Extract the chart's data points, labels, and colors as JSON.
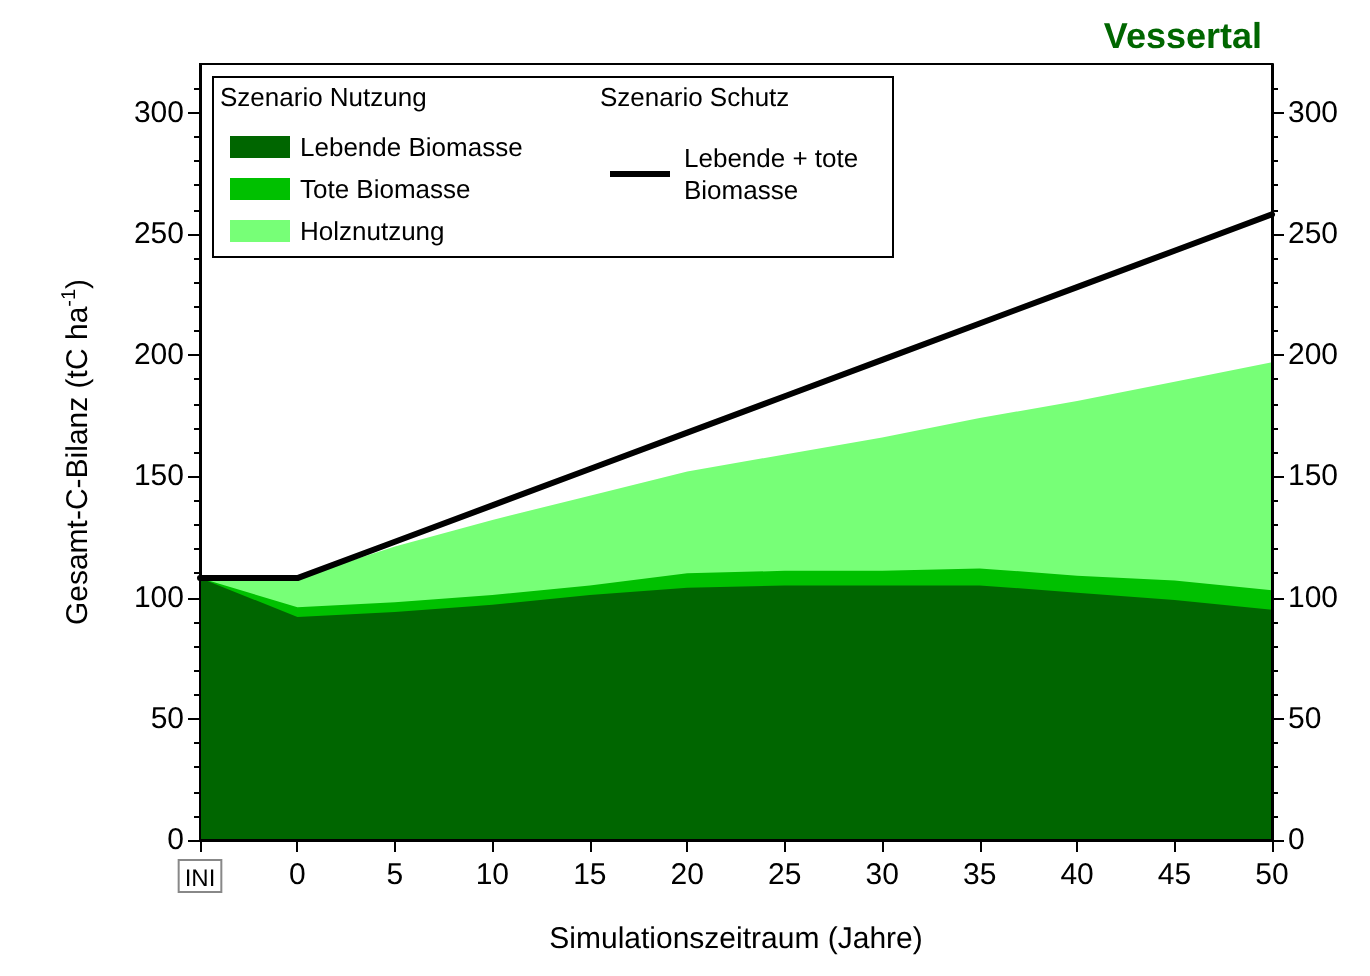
{
  "chart_data": {
    "type": "area",
    "title": "Vessertal",
    "xlabel": "Simulationszeitraum (Jahre)",
    "ylabel": "Gesamt-C-Bilanz (tC ha$^{-1}$)",
    "legend_title": "Szenario Nutzung",
    "annotations": [
      "Szenario Schutz"
    ],
    "x": [
      -5,
      0,
      5,
      10,
      15,
      20,
      25,
      30,
      35,
      40,
      45,
      50
    ],
    "stacked": true,
    "series": [
      {
        "name": "Lebende Biomasse",
        "color": "#006600",
        "values": [
          108,
          92,
          94,
          97,
          101,
          104,
          105,
          105,
          105,
          102,
          99,
          95
        ]
      },
      {
        "name": "Tote Biomasse",
        "color": "#00c000",
        "values": [
          0,
          4,
          4,
          4,
          4,
          6,
          6,
          6,
          7,
          7,
          8,
          8
        ]
      },
      {
        "name": "Holznutzung",
        "color": "#77ff77",
        "values": [
          0,
          12,
          23,
          31,
          37,
          42,
          48,
          55,
          62,
          72,
          82,
          94
        ]
      },
      {
        "name": "Lebende + tote Biomasse",
        "type": "line",
        "color": "#000000",
        "values": [
          108,
          108,
          123,
          138,
          153,
          168,
          183,
          198,
          213,
          228,
          243,
          258
        ]
      }
    ],
    "xlim": [
      -5,
      50
    ],
    "xticks": [
      {
        "value": -5,
        "label": "INI"
      },
      0,
      5,
      10,
      15,
      20,
      25,
      30,
      35,
      40,
      45,
      50
    ],
    "ylim": [
      0,
      320
    ],
    "yticks": [
      0,
      50,
      100,
      150,
      200,
      250,
      300
    ],
    "y2lim": [
      0,
      320
    ],
    "y2ticks": [
      0,
      50,
      100,
      150,
      200,
      250,
      300
    ],
    "grid": false,
    "legend": "top left",
    "marker": "none",
    "line_style": "solid"
  }
}
